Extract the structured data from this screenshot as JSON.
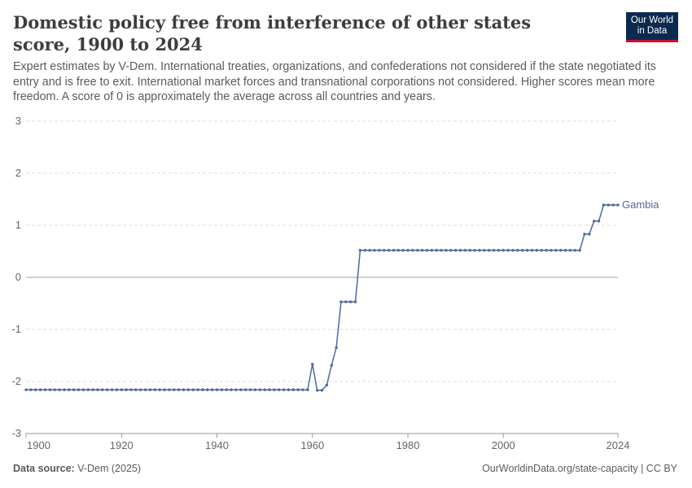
{
  "header": {
    "title": "Domestic policy free from interference of other states score, 1900 to 2024",
    "subtitle": "Expert estimates by V-Dem. International treaties, organizations, and confederations not considered if the state negotiated its entry and is free to exit. International market forces and transnational corporations not considered. Higher scores mean more freedom. A score of 0 is approximately the average across all countries and years.",
    "logo_line1": "Our World",
    "logo_line2": "in Data"
  },
  "footer": {
    "source_label": "Data source:",
    "source_value": "V-Dem (2025)",
    "link": "OurWorldinData.org/state-capacity | CC BY"
  },
  "colors": {
    "series": "#4c6a9c",
    "grid": "#dddddd",
    "zero_line": "#a0a0a0"
  },
  "chart_data": {
    "type": "line",
    "xlim": [
      1900,
      2024
    ],
    "ylim": [
      -3,
      3
    ],
    "x_ticks": [
      "1900",
      "1920",
      "1940",
      "1960",
      "1980",
      "2000",
      "2024"
    ],
    "y_ticks": [
      "3",
      "2",
      "1",
      "0",
      "-1",
      "-2",
      "-3"
    ],
    "grid": true,
    "series": [
      {
        "name": "Gambia",
        "points": [
          [
            1900,
            -2.16
          ],
          [
            1901,
            -2.16
          ],
          [
            1902,
            -2.16
          ],
          [
            1903,
            -2.16
          ],
          [
            1904,
            -2.16
          ],
          [
            1905,
            -2.16
          ],
          [
            1906,
            -2.16
          ],
          [
            1907,
            -2.16
          ],
          [
            1908,
            -2.16
          ],
          [
            1909,
            -2.16
          ],
          [
            1910,
            -2.16
          ],
          [
            1911,
            -2.16
          ],
          [
            1912,
            -2.16
          ],
          [
            1913,
            -2.16
          ],
          [
            1914,
            -2.16
          ],
          [
            1915,
            -2.16
          ],
          [
            1916,
            -2.16
          ],
          [
            1917,
            -2.16
          ],
          [
            1918,
            -2.16
          ],
          [
            1919,
            -2.16
          ],
          [
            1920,
            -2.16
          ],
          [
            1921,
            -2.16
          ],
          [
            1922,
            -2.16
          ],
          [
            1923,
            -2.16
          ],
          [
            1924,
            -2.16
          ],
          [
            1925,
            -2.16
          ],
          [
            1926,
            -2.16
          ],
          [
            1927,
            -2.16
          ],
          [
            1928,
            -2.16
          ],
          [
            1929,
            -2.16
          ],
          [
            1930,
            -2.16
          ],
          [
            1931,
            -2.16
          ],
          [
            1932,
            -2.16
          ],
          [
            1933,
            -2.16
          ],
          [
            1934,
            -2.16
          ],
          [
            1935,
            -2.16
          ],
          [
            1936,
            -2.16
          ],
          [
            1937,
            -2.16
          ],
          [
            1938,
            -2.16
          ],
          [
            1939,
            -2.16
          ],
          [
            1940,
            -2.16
          ],
          [
            1941,
            -2.16
          ],
          [
            1942,
            -2.16
          ],
          [
            1943,
            -2.16
          ],
          [
            1944,
            -2.16
          ],
          [
            1945,
            -2.16
          ],
          [
            1946,
            -2.16
          ],
          [
            1947,
            -2.16
          ],
          [
            1948,
            -2.16
          ],
          [
            1949,
            -2.16
          ],
          [
            1950,
            -2.16
          ],
          [
            1951,
            -2.16
          ],
          [
            1952,
            -2.16
          ],
          [
            1953,
            -2.16
          ],
          [
            1954,
            -2.16
          ],
          [
            1955,
            -2.16
          ],
          [
            1956,
            -2.16
          ],
          [
            1957,
            -2.16
          ],
          [
            1958,
            -2.16
          ],
          [
            1959,
            -2.16
          ],
          [
            1960,
            -1.67
          ],
          [
            1961,
            -2.17
          ],
          [
            1962,
            -2.17
          ],
          [
            1963,
            -2.07
          ],
          [
            1964,
            -1.69
          ],
          [
            1965,
            -1.35
          ],
          [
            1966,
            -0.47
          ],
          [
            1967,
            -0.47
          ],
          [
            1968,
            -0.47
          ],
          [
            1969,
            -0.47
          ],
          [
            1970,
            0.52
          ],
          [
            1971,
            0.52
          ],
          [
            1972,
            0.52
          ],
          [
            1973,
            0.52
          ],
          [
            1974,
            0.52
          ],
          [
            1975,
            0.52
          ],
          [
            1976,
            0.52
          ],
          [
            1977,
            0.52
          ],
          [
            1978,
            0.52
          ],
          [
            1979,
            0.52
          ],
          [
            1980,
            0.52
          ],
          [
            1981,
            0.52
          ],
          [
            1982,
            0.52
          ],
          [
            1983,
            0.52
          ],
          [
            1984,
            0.52
          ],
          [
            1985,
            0.52
          ],
          [
            1986,
            0.52
          ],
          [
            1987,
            0.52
          ],
          [
            1988,
            0.52
          ],
          [
            1989,
            0.52
          ],
          [
            1990,
            0.52
          ],
          [
            1991,
            0.52
          ],
          [
            1992,
            0.52
          ],
          [
            1993,
            0.52
          ],
          [
            1994,
            0.52
          ],
          [
            1995,
            0.52
          ],
          [
            1996,
            0.52
          ],
          [
            1997,
            0.52
          ],
          [
            1998,
            0.52
          ],
          [
            1999,
            0.52
          ],
          [
            2000,
            0.52
          ],
          [
            2001,
            0.52
          ],
          [
            2002,
            0.52
          ],
          [
            2003,
            0.52
          ],
          [
            2004,
            0.52
          ],
          [
            2005,
            0.52
          ],
          [
            2006,
            0.52
          ],
          [
            2007,
            0.52
          ],
          [
            2008,
            0.52
          ],
          [
            2009,
            0.52
          ],
          [
            2010,
            0.52
          ],
          [
            2011,
            0.52
          ],
          [
            2012,
            0.52
          ],
          [
            2013,
            0.52
          ],
          [
            2014,
            0.52
          ],
          [
            2015,
            0.52
          ],
          [
            2016,
            0.52
          ],
          [
            2017,
            0.83
          ],
          [
            2018,
            0.83
          ],
          [
            2019,
            1.08
          ],
          [
            2020,
            1.08
          ],
          [
            2021,
            1.39
          ],
          [
            2022,
            1.39
          ],
          [
            2023,
            1.39
          ],
          [
            2024,
            1.39
          ]
        ]
      }
    ]
  }
}
